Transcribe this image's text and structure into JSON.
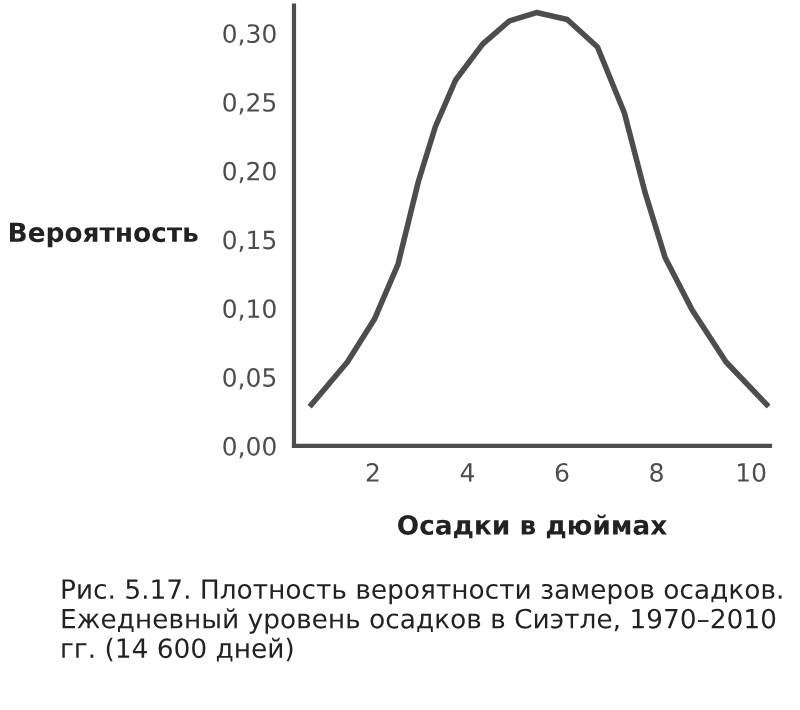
{
  "chart_data": {
    "type": "line",
    "xlabel": "Осадки в дюймах",
    "ylabel": "Вероятность",
    "x": [
      0.7,
      1.46,
      2.03,
      2.53,
      2.96,
      3.32,
      3.75,
      4.32,
      4.89,
      5.46,
      6.11,
      6.75,
      7.32,
      7.75,
      8.18,
      8.75,
      9.47,
      10.33
    ],
    "series": [
      {
        "color": "#4d4d4d",
        "values": [
          0.03,
          0.061,
          0.092,
          0.132,
          0.192,
          0.232,
          0.266,
          0.292,
          0.309,
          0.315,
          0.31,
          0.29,
          0.242,
          0.185,
          0.137,
          0.099,
          0.061,
          0.03
        ]
      }
    ],
    "xlim": [
      0.33,
      10.4
    ],
    "ylim": [
      0,
      0.32
    ],
    "xticks": [
      2,
      4,
      6,
      8,
      10
    ],
    "yticks": [
      {
        "value": 0,
        "label": "0,00"
      },
      {
        "value": 0.05,
        "label": "0,05"
      },
      {
        "value": 0.1,
        "label": "0,10"
      },
      {
        "value": 0.15,
        "label": "0,15"
      },
      {
        "value": 0.2,
        "label": "0,20"
      },
      {
        "value": 0.25,
        "label": "0,25"
      },
      {
        "value": 0.3,
        "label": "0,30"
      }
    ],
    "grid": false,
    "legend": false,
    "marker": "none",
    "line_style": "solid",
    "annotations": [
      "Рис. 5.17. Плотность вероятности замеров осадков. Ежедневный уровень осадков в Сиэтле, 1970–2010 гг. (14 600 дней)"
    ]
  }
}
